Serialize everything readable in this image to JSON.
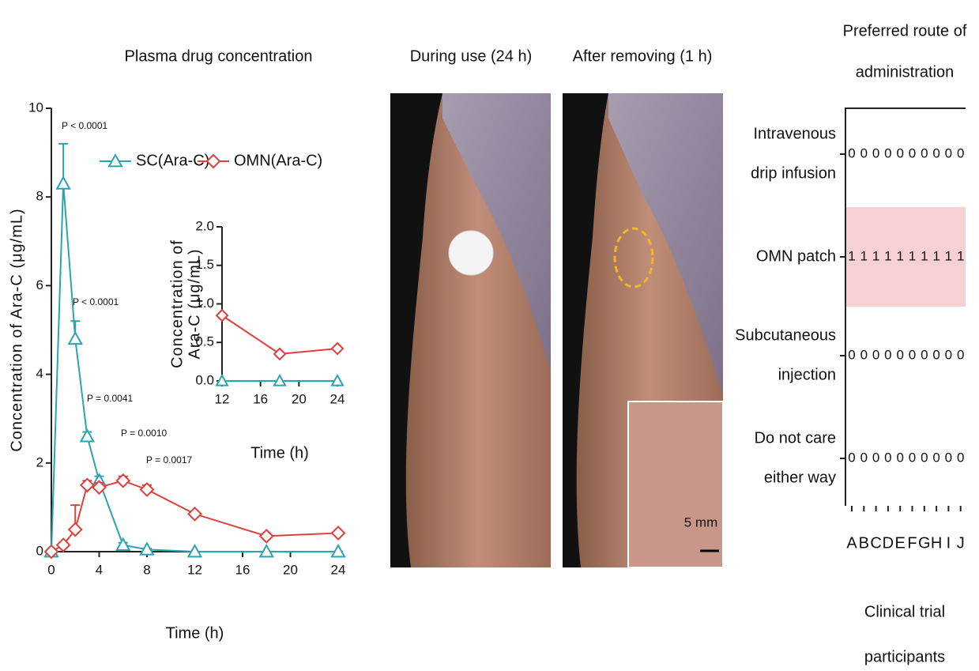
{
  "chart_data": [
    {
      "type": "line",
      "title": "Plasma drug concentration",
      "xlabel": "Time (h)",
      "ylabel": "Concentration of Ara-C (μg/mL)",
      "xlim": [
        0,
        24
      ],
      "ylim": [
        0,
        10
      ],
      "xticks": [
        0,
        4,
        8,
        12,
        16,
        20,
        24
      ],
      "yticks": [
        0,
        2,
        4,
        6,
        8,
        10
      ],
      "x": [
        0,
        1,
        2,
        3,
        4,
        6,
        8,
        12,
        18,
        24
      ],
      "series": [
        {
          "name": "SC(Ara-C)",
          "color": "#2aa3b3",
          "marker": "triangle",
          "values": [
            0,
            8.3,
            4.8,
            2.6,
            1.6,
            0.15,
            0.05,
            0,
            0,
            0
          ],
          "errors": [
            0,
            0.9,
            0.4,
            0.1,
            0.1,
            0.05,
            0.02,
            0,
            0,
            0
          ]
        },
        {
          "name": "OMN(Ara-C)",
          "color": "#e0403c",
          "marker": "diamond",
          "values": [
            0,
            0.15,
            0.5,
            1.5,
            1.45,
            1.6,
            1.4,
            0.85,
            0.35,
            0.42
          ],
          "errors": [
            0,
            0.05,
            0.55,
            0.1,
            0.1,
            0.1,
            0.1,
            0.05,
            0.05,
            0.05
          ]
        }
      ],
      "annotations": [
        "P < 0.0001",
        "P < 0.0001",
        "P = 0.0041",
        "P = 0.0010",
        "P = 0.0017"
      ]
    },
    {
      "type": "line",
      "xlabel": "Time (h)",
      "ylabel": [
        "Concentration of",
        "Ara-C (μg/mL)"
      ],
      "xlim": [
        12,
        24
      ],
      "ylim": [
        0,
        2
      ],
      "xticks": [
        12,
        16,
        20,
        24
      ],
      "yticks": [
        {
          "value": 0,
          "label": "0.0"
        },
        0.5,
        {
          "value": 1,
          "label": "1.0"
        },
        1.5,
        {
          "value": 2,
          "label": "2.0"
        }
      ],
      "x": [
        12,
        18,
        24
      ],
      "series": [
        {
          "color": "#2aa3b3",
          "marker": "triangle",
          "values": [
            0,
            0,
            0
          ]
        },
        {
          "color": "#e0403c",
          "marker": "diamond",
          "values": [
            0.85,
            0.35,
            0.42
          ]
        }
      ]
    },
    {
      "type": "matrix",
      "title": [
        "Preferred route of",
        "administration"
      ],
      "xlabel": [
        "Clinical trial",
        "participants"
      ],
      "categories": [
        "A",
        "B",
        "C",
        "D",
        "E",
        "F",
        "G",
        "H",
        "I",
        "J"
      ],
      "rows": [
        [
          "Intravenous",
          "drip infusion"
        ],
        [
          "OMN patch"
        ],
        [
          "Subcutaneous",
          "injection"
        ],
        [
          "Do not care",
          "either way"
        ]
      ],
      "values": [
        [
          0,
          0,
          0,
          0,
          0,
          0,
          0,
          0,
          0,
          0
        ],
        [
          1,
          1,
          1,
          1,
          1,
          1,
          1,
          1,
          1,
          1
        ],
        [
          0,
          0,
          0,
          0,
          0,
          0,
          0,
          0,
          0,
          0
        ],
        [
          0,
          0,
          0,
          0,
          0,
          0,
          0,
          0,
          0,
          0
        ]
      ],
      "highlight": {
        "row": 1,
        "color": "#f7d0d4"
      }
    }
  ],
  "photos": [
    {
      "title": "During use (24 h)"
    },
    {
      "title": "After removing (1 h)",
      "scale_bar": "5 mm"
    }
  ]
}
